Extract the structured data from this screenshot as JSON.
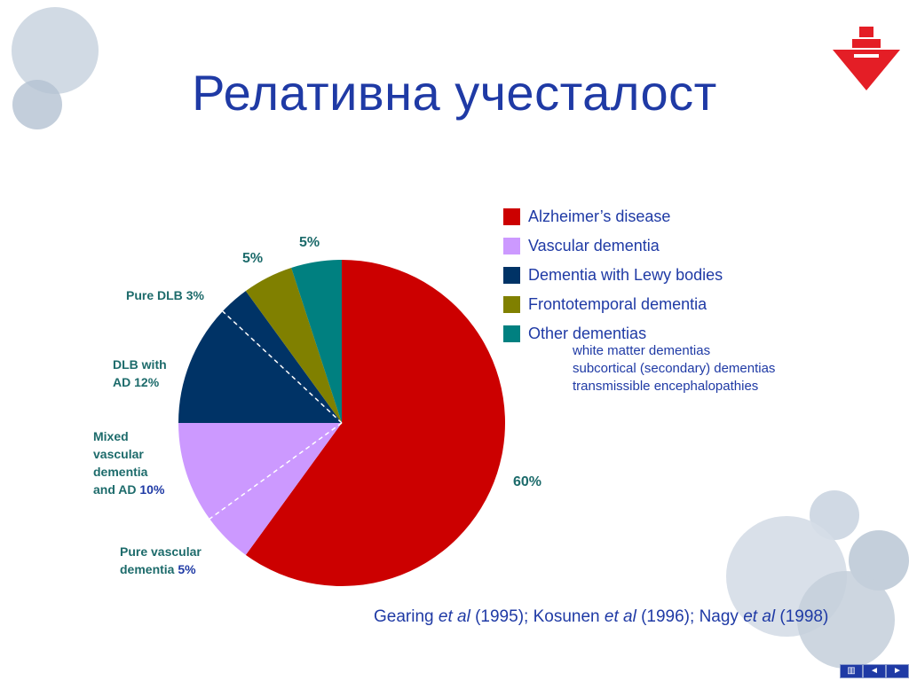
{
  "title": "Релативна учесталост",
  "colors": {
    "alzheimer": "#cc0000",
    "vascular": "#cc99ff",
    "lewy": "#003366",
    "frontotemporal": "#808000",
    "other": "#008080",
    "title": "#1f3aa5",
    "slice_label": "#1d6b6b"
  },
  "chart_data": {
    "type": "pie",
    "slices": [
      {
        "name": "Alzheimer’s disease",
        "value": 60
      },
      {
        "name": "Pure vascular dementia",
        "value": 5
      },
      {
        "name": "Mixed vascular dementia and AD",
        "value": 10
      },
      {
        "name": "DLB with AD",
        "value": 12
      },
      {
        "name": "Pure DLB",
        "value": 3
      },
      {
        "name": "Frontotemporal dementia",
        "value": 5
      },
      {
        "name": "Other dementias",
        "value": 5
      }
    ],
    "slice_labels": {
      "alzheimer_pct": "60%",
      "pure_vascular_text": "Pure vascular",
      "pure_vascular_text2": "dementia",
      "pure_vascular_pct": "5%",
      "mixed_text1": "Mixed",
      "mixed_text2": "vascular",
      "mixed_text3": "dementia",
      "mixed_text4": "and AD",
      "mixed_pct": "10%",
      "dlb_ad_text1": "DLB with",
      "dlb_ad_text2": "AD",
      "dlb_ad_pct": "12%",
      "pure_dlb_text": "Pure DLB",
      "pure_dlb_pct": "3%",
      "frontotemporal_pct": "5%",
      "other_pct": "5%"
    },
    "legend": {
      "items": [
        "Alzheimer’s disease",
        "Vascular dementia",
        "Dementia with Lewy bodies",
        "Frontotemporal dementia",
        "Other dementias"
      ],
      "other_subitems": [
        "white matter dementias",
        "subcortical (secondary) dementias",
        "transmissible encephalopathies"
      ],
      "placement": "right"
    }
  },
  "citation": {
    "a1": "Gearing",
    "e1": "et al",
    "y1": "(1995);",
    "a2": "Kosunen",
    "e2": "et al",
    "y2": "(1996);",
    "a3": "Nagy",
    "e3": "et al",
    "y3": "(1998)"
  },
  "nav": {
    "b1": "▥",
    "b2": "◄",
    "b3": "►"
  }
}
